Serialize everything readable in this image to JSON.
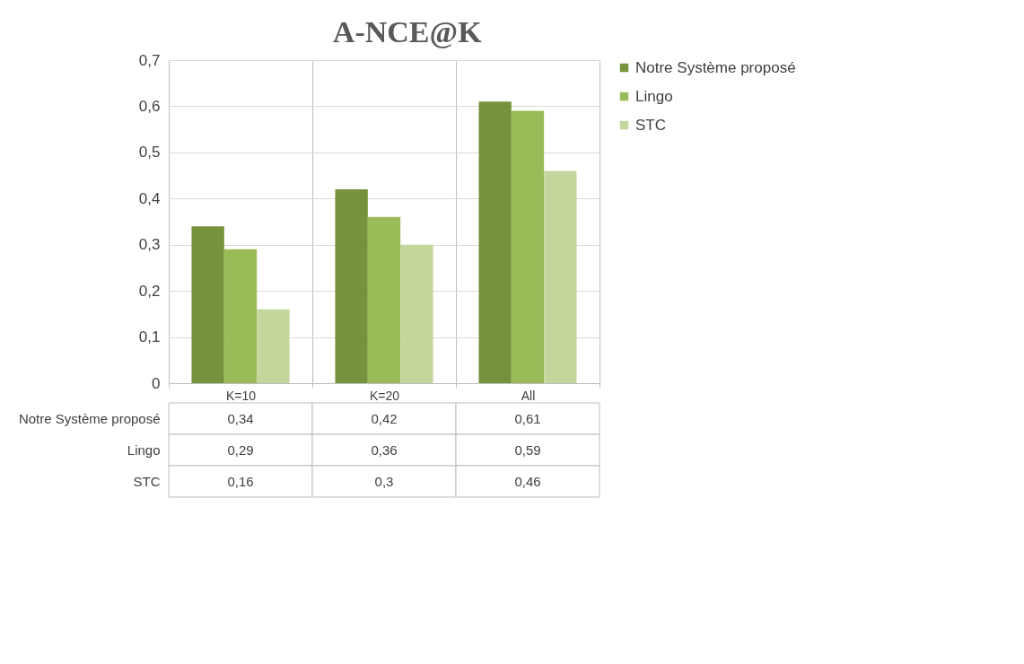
{
  "chart_data": {
    "type": "bar",
    "title": "A-NCE@K",
    "categories": [
      "K=10",
      "K=20",
      "All"
    ],
    "series": [
      {
        "name": "Notre Système proposé",
        "color": "#76923c",
        "values": [
          0.34,
          0.42,
          0.61
        ],
        "value_labels": [
          "0,34",
          "0,42",
          "0,61"
        ]
      },
      {
        "name": "Lingo",
        "color": "#9bbb59",
        "values": [
          0.29,
          0.36,
          0.59
        ],
        "value_labels": [
          "0,29",
          "0,36",
          "0,59"
        ]
      },
      {
        "name": "STC",
        "color": "#c3d69b",
        "values": [
          0.16,
          0.3,
          0.46
        ],
        "value_labels": [
          "0,16",
          "0,3",
          "0,46"
        ]
      }
    ],
    "ylim": [
      0,
      0.7
    ],
    "yticks": [
      {
        "value": 0,
        "label": "0"
      },
      {
        "value": 0.1,
        "label": "0,1"
      },
      {
        "value": 0.2,
        "label": "0,2"
      },
      {
        "value": 0.3,
        "label": "0,3"
      },
      {
        "value": 0.4,
        "label": "0,4"
      },
      {
        "value": 0.5,
        "label": "0,5"
      },
      {
        "value": 0.6,
        "label": "0,6"
      },
      {
        "value": 0.7,
        "label": "0,7"
      }
    ],
    "grid": true,
    "legend": "right"
  }
}
